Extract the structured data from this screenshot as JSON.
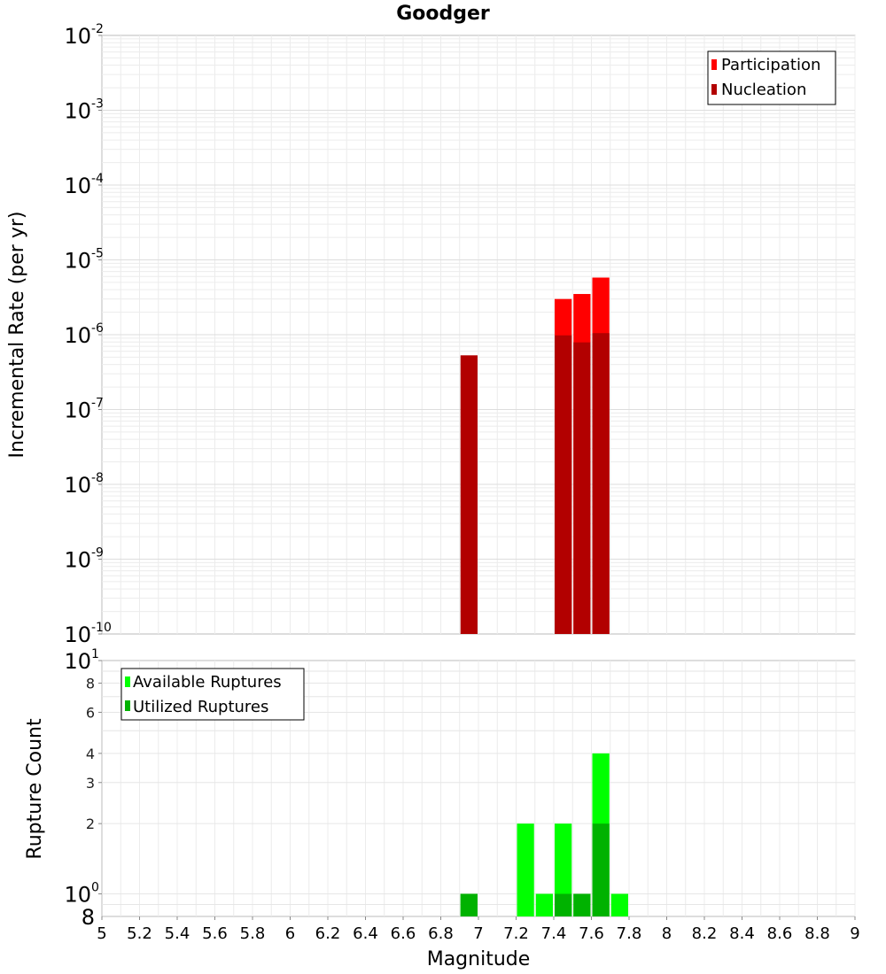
{
  "chart_data": [
    {
      "type": "bar",
      "title": "Goodger",
      "xlabel": "",
      "ylabel": "Incremental Rate (per yr)",
      "yscale": "log",
      "xlim": [
        5,
        9
      ],
      "ylim": [
        1e-10,
        0.01
      ],
      "grid": true,
      "bar_width": 0.1,
      "y_ticks": [
        {
          "base": "10",
          "exp": "-2",
          "value": 0.01
        },
        {
          "base": "10",
          "exp": "-3",
          "value": 0.001
        },
        {
          "base": "10",
          "exp": "-4",
          "value": 0.0001
        },
        {
          "base": "10",
          "exp": "-5",
          "value": 1e-05
        },
        {
          "base": "10",
          "exp": "-6",
          "value": 1e-06
        },
        {
          "base": "10",
          "exp": "-7",
          "value": 1e-07
        },
        {
          "base": "10",
          "exp": "-8",
          "value": 1e-08
        },
        {
          "base": "10",
          "exp": "-9",
          "value": 1e-09
        },
        {
          "base": "10",
          "exp": "-10",
          "value": 1e-10
        }
      ],
      "legend": {
        "placement": "top-right"
      },
      "series": [
        {
          "name": "Participation",
          "color": "#ff0000",
          "x": [
            7.45,
            7.55,
            7.65
          ],
          "values": [
            3e-06,
            3.5e-06,
            5.8e-06
          ]
        },
        {
          "name": "Nucleation",
          "color": "#b20000",
          "x": [
            6.95,
            7.45,
            7.55,
            7.65
          ],
          "values": [
            5.3e-07,
            9.8e-07,
            7.9e-07,
            1.05e-06
          ]
        }
      ]
    },
    {
      "type": "bar",
      "xlabel": "Magnitude",
      "ylabel": "Rupture Count",
      "yscale": "log",
      "xlim": [
        5,
        9
      ],
      "ylim": [
        0.8,
        10
      ],
      "grid": true,
      "bar_width": 0.1,
      "x_ticks": [
        "5",
        "5.2",
        "5.4",
        "5.6",
        "5.8",
        "6",
        "6.2",
        "6.4",
        "6.6",
        "6.8",
        "7",
        "7.2",
        "7.4",
        "7.6",
        "7.8",
        "8",
        "8.2",
        "8.4",
        "8.6",
        "8.8",
        "9"
      ],
      "y_ticks": [
        {
          "label": "8",
          "value": 8
        },
        {
          "label": "6",
          "value": 6
        },
        {
          "label": "4",
          "value": 4
        },
        {
          "label": "3",
          "value": 3
        },
        {
          "label": "2",
          "value": 2
        }
      ],
      "y_ticks_major": [
        {
          "base": "10",
          "exp": "1",
          "value": 10
        },
        {
          "base": "10",
          "exp": "0",
          "value": 1
        }
      ],
      "y_ticks_bottom": [
        {
          "label": "8",
          "value": 0.8
        }
      ],
      "legend": {
        "placement": "top-left"
      },
      "series": [
        {
          "name": "Available Ruptures",
          "color": "#00ff00",
          "x": [
            6.95,
            7.25,
            7.35,
            7.45,
            7.55,
            7.65,
            7.75
          ],
          "values": [
            1,
            2,
            1,
            2,
            1,
            4,
            1
          ]
        },
        {
          "name": "Utilized Ruptures",
          "color": "#00b200",
          "x": [
            6.95,
            7.45,
            7.55,
            7.65
          ],
          "values": [
            1,
            1,
            1,
            2
          ]
        }
      ]
    }
  ]
}
